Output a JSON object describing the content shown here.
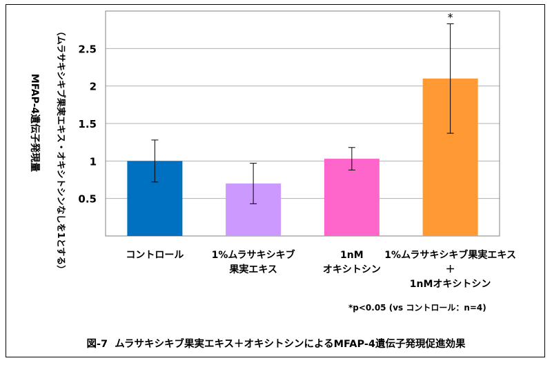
{
  "chart_data": {
    "type": "bar",
    "ylabel_outer": "MFAP-4遺伝子発現量",
    "ylabel_inner": "（ムラサキシキブ果実エキス・オキシトシンなしを1とする）",
    "ylim": [
      0,
      3
    ],
    "yticks": [
      "0.5",
      "1",
      "1.5",
      "2",
      "2.5"
    ],
    "ytick_values": [
      0.5,
      1,
      1.5,
      2,
      2.5
    ],
    "grid": true,
    "categories": [
      {
        "lines": [
          "コントロール"
        ]
      },
      {
        "lines": [
          "1%ムラサキシキブ",
          "果実エキス"
        ]
      },
      {
        "lines": [
          "1nM",
          "オキシトシン"
        ]
      },
      {
        "lines": [
          "1%ムラサキシキブ果実エキス",
          "＋",
          "1nMオキシトシン"
        ]
      }
    ],
    "values": [
      1.0,
      0.7,
      1.03,
      2.1
    ],
    "errors": [
      0.28,
      0.27,
      0.15,
      0.73
    ],
    "colors": [
      "#0070c0",
      "#cc99ff",
      "#ff66cc",
      "#ff9933"
    ],
    "significance": [
      "",
      "",
      "",
      "*"
    ],
    "footnote": "*p<0.05 (vs コントロール：n=4)",
    "caption": "図-7  ムラサキシキブ果実エキス＋オキシトシンによるMFAP-4遺伝子発現促進効果"
  }
}
